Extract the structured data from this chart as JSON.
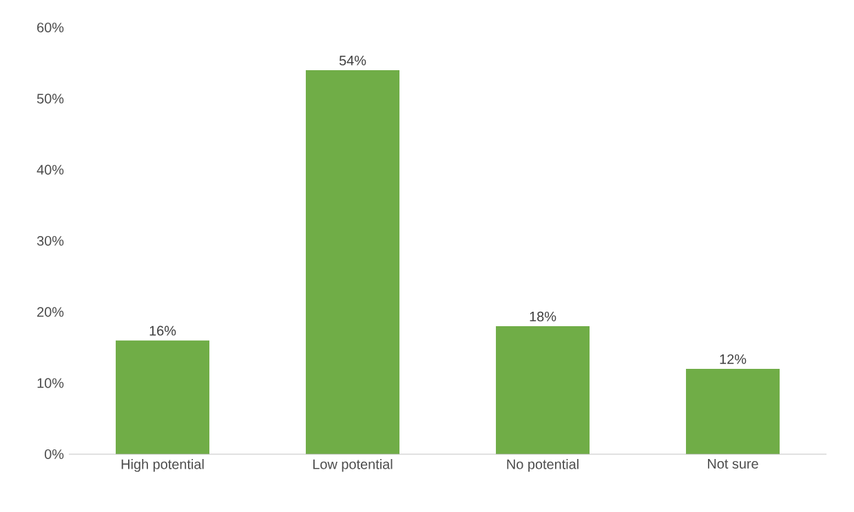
{
  "chart_data": {
    "type": "bar",
    "categories": [
      "High potential",
      "Low potential",
      "No potential",
      "Not sure"
    ],
    "values": [
      16,
      54,
      18,
      12
    ],
    "value_labels": [
      "16%",
      "54%",
      "18%",
      "12%"
    ],
    "color": "#70ad47",
    "ylim": [
      0,
      60
    ],
    "yticks": [
      {
        "value": 0,
        "label": "0%"
      },
      {
        "value": 10,
        "label": "10%"
      },
      {
        "value": 20,
        "label": "20%"
      },
      {
        "value": 30,
        "label": "30%"
      },
      {
        "value": 40,
        "label": "40%"
      },
      {
        "value": 50,
        "label": "50%"
      },
      {
        "value": 60,
        "label": "60%"
      }
    ]
  }
}
